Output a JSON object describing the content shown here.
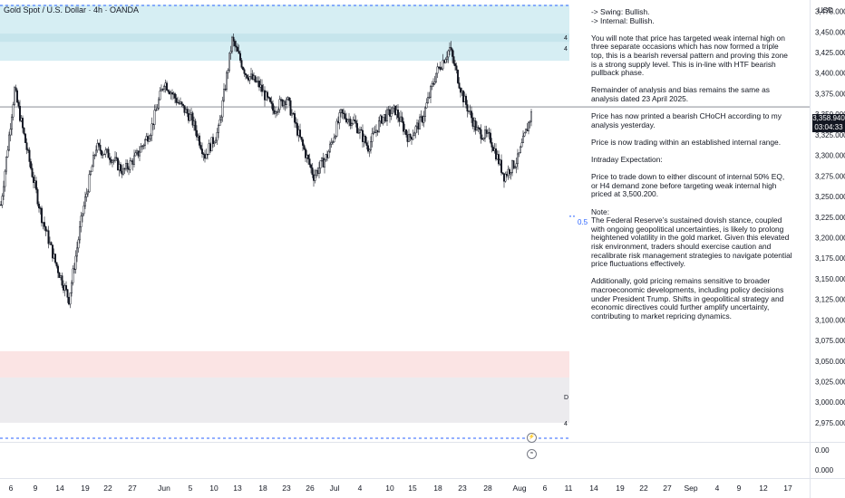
{
  "title": "Gold Spot / U.S. Dollar · 4h · OANDA",
  "currency": "USD",
  "current_price": "3,358.940",
  "countdown": "03:04:33",
  "fib_label": "0.5",
  "zone_badges": [
    "4",
    "4",
    "D",
    "4"
  ],
  "icon_labels": [
    "⚡",
    "≈"
  ],
  "colors": {
    "supply_zone": "#d6eef3",
    "demand_zone": "#fbe4e4",
    "lower_zone": "#ecebee",
    "candle": "#131722",
    "price_line": "#787b86",
    "fib_line": "#2962ff"
  },
  "notes": [
    "-> Swing:  Bullish.\n-> Internal:  Bullish.",
    "You will note that price has targeted weak internal high on three separate occasions which has now formed a triple top, this is a bearish reversal pattern and proving this zone is a strong supply level.  This is in-line with HTF bearish pullback phase.",
    "Remainder of analysis and bias remains the same as analysis dated 23 April 2025.",
    "Price has now printed a bearish CHoCH according to my analysis yesterday.",
    "Price is now trading within an established internal range.",
    "Intraday Expectation:",
    "Price to trade down to either discount of internal 50% EQ, or H4 demand zone before targeting weak internal high priced at 3,500.200.",
    "Note:\nThe Federal Reserve’s sustained dovish stance, coupled with ongoing geopolitical uncertainties, is likely to prolong heightened volatility in the gold market. Given this elevated risk environment, traders should exercise caution and recalibrate risk management strategies to navigate potential price fluctuations effectively.",
    "Additionally, gold pricing remains sensitive to broader macroeconomic developments, including policy decisions under President Trump. Shifts in geopolitical strategy and economic directives could further amplify uncertainty, contributing to market repricing dynamics."
  ],
  "chart_data": {
    "type": "line",
    "instrument": "Gold Spot / U.S. Dollar",
    "timeframe": "4h",
    "source": "OANDA",
    "y_axis": {
      "ticks": [
        "3,475.000",
        "3,450.000",
        "3,425.000",
        "3,400.000",
        "3,375.000",
        "3,350.000",
        "3,325.000",
        "3,300.000",
        "3,275.000",
        "3,250.000",
        "3,225.000",
        "3,200.000",
        "3,175.000",
        "3,150.000",
        "3,125.000",
        "3,100.000",
        "3,075.000",
        "3,050.000",
        "3,025.000",
        "3,000.000",
        "2,975.000"
      ],
      "tick_values": [
        3475,
        3450,
        3425,
        3400,
        3375,
        3350,
        3325,
        3300,
        3275,
        3250,
        3225,
        3200,
        3175,
        3150,
        3125,
        3100,
        3075,
        3050,
        3025,
        3000,
        2975
      ],
      "extra_ticks": [
        "0.00",
        "0.000"
      ],
      "ylim": [
        2950,
        3490
      ]
    },
    "x_axis": {
      "ticks": [
        "6",
        "9",
        "14",
        "19",
        "22",
        "27",
        "Jun",
        "5",
        "10",
        "13",
        "18",
        "23",
        "26",
        "Jul",
        "4",
        "10",
        "15",
        "18",
        "23",
        "28",
        "Aug",
        "6",
        "11",
        "14",
        "19",
        "22",
        "27",
        "Sep",
        "4",
        "9",
        "12",
        "17"
      ]
    },
    "series": [
      {
        "x": [
          "May 6",
          "May 7",
          "May 9",
          "May 12",
          "May 14",
          "May 15",
          "May 19",
          "May 21",
          "May 22",
          "May 26",
          "May 27",
          "May 29",
          "Jun 2",
          "Jun 4",
          "Jun 5",
          "Jun 9",
          "Jun 10",
          "Jun 13",
          "Jun 16",
          "Jun 18",
          "Jun 20",
          "Jun 23",
          "Jun 24",
          "Jun 26",
          "Jun 30",
          "Jul 2",
          "Jul 4",
          "Jul 8",
          "Jul 10",
          "Jul 14",
          "Jul 16",
          "Jul 18",
          "Jul 21",
          "Jul 23",
          "Jul 25",
          "Jul 28",
          "Jul 30",
          "Aug 1",
          "Aug 3",
          "Aug 5"
        ],
        "values": [
          3240,
          3380,
          3300,
          3225,
          3170,
          3125,
          3230,
          3310,
          3300,
          3280,
          3300,
          3330,
          3390,
          3365,
          3345,
          3300,
          3330,
          3440,
          3400,
          3385,
          3355,
          3370,
          3320,
          3275,
          3300,
          3350,
          3340,
          3310,
          3345,
          3355,
          3320,
          3345,
          3400,
          3430,
          3370,
          3330,
          3320,
          3275,
          3295,
          3350
        ]
      }
    ],
    "current_price": 3358.94,
    "supply_zone": [
      3415,
      3483
    ],
    "demand_zone": [
      3030,
      3062
    ],
    "lower_zone": [
      2975,
      3030
    ],
    "equilibrium_level": 0.5,
    "equilibrium_price": 3226
  }
}
